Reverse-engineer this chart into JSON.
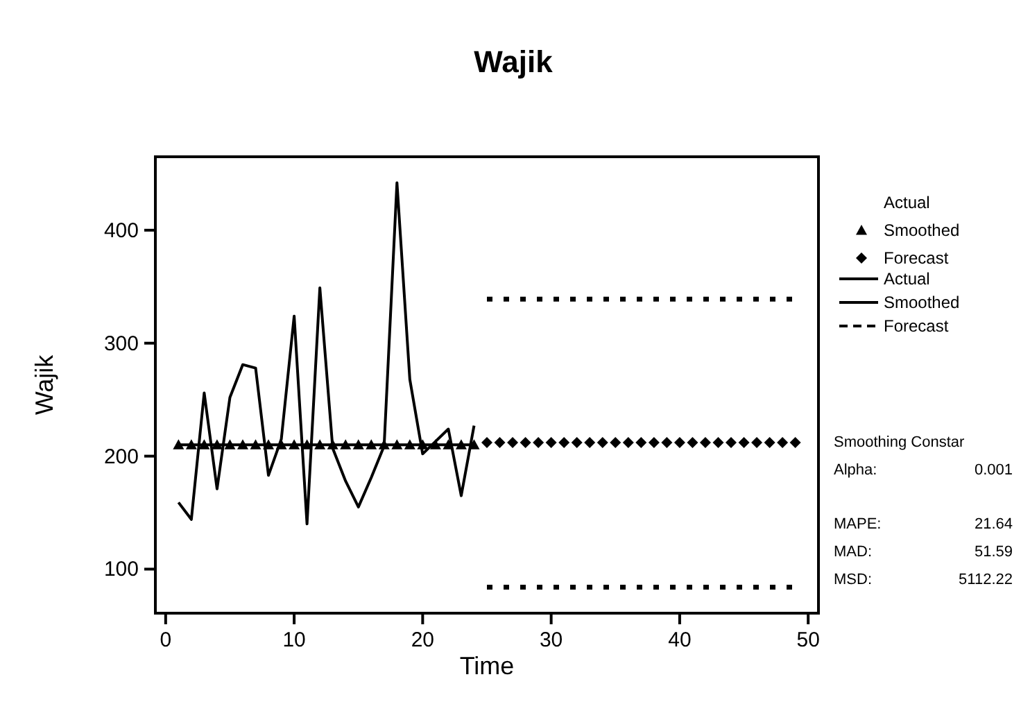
{
  "chart_data": {
    "type": "line",
    "title": "Wajik",
    "xlabel": "Time",
    "ylabel": "Wajik",
    "xlim": [
      -0.8,
      50.8
    ],
    "ylim": [
      61,
      465
    ],
    "xticks": [
      0,
      10,
      20,
      30,
      40,
      50
    ],
    "yticks": [
      100,
      200,
      300,
      400
    ],
    "grid": false,
    "legend": "right",
    "series": [
      {
        "name": "Actual",
        "color": "#000000",
        "marker": "none",
        "line_style": "solid",
        "x": [
          1,
          2,
          3,
          4,
          5,
          6,
          7,
          8,
          9,
          10,
          11,
          12,
          13,
          14,
          15,
          16,
          17,
          18,
          19,
          20,
          21,
          22,
          23,
          24
        ],
        "values": [
          159,
          144,
          256,
          171,
          252,
          281,
          278,
          183,
          215,
          324,
          140,
          349,
          207,
          178,
          155,
          181,
          209,
          442,
          268,
          202,
          213,
          224,
          165,
          227
        ]
      },
      {
        "name": "Smoothed",
        "color": "#000000",
        "marker": "triangle",
        "line_style": "solid",
        "x": [
          1,
          2,
          3,
          4,
          5,
          6,
          7,
          8,
          9,
          10,
          11,
          12,
          13,
          14,
          15,
          16,
          17,
          18,
          19,
          20,
          21,
          22,
          23,
          24
        ],
        "values": [
          210,
          210,
          210,
          210,
          210,
          210,
          210,
          210,
          210,
          210,
          210,
          210,
          210,
          210,
          210,
          210,
          210,
          210,
          210,
          210,
          210,
          210,
          210,
          210
        ]
      },
      {
        "name": "Forecast",
        "type": "scatter",
        "color": "#000000",
        "marker": "diamond",
        "x": [
          25,
          26,
          27,
          28,
          29,
          30,
          31,
          32,
          33,
          34,
          35,
          36,
          37,
          38,
          39,
          40,
          41,
          42,
          43,
          44,
          45,
          46,
          47,
          48,
          49
        ],
        "values": [
          212,
          212,
          212,
          212,
          212,
          212,
          212,
          212,
          212,
          212,
          212,
          212,
          212,
          212,
          212,
          212,
          212,
          212,
          212,
          212,
          212,
          212,
          212,
          212,
          212
        ]
      },
      {
        "name": "Forecast",
        "color": "#000000",
        "marker": "none",
        "line_style": "dotted",
        "x": [
          25,
          49
        ],
        "values": [
          339,
          339
        ]
      },
      {
        "color": "#000000",
        "marker": "none",
        "line_style": "dotted",
        "x": [
          25,
          49
        ],
        "values": [
          84,
          84
        ]
      }
    ],
    "annotations": [
      "Smoothing Constar",
      "Alpha: 0.001",
      "MAPE: 21.64",
      "MAD: 51.59",
      "MSD: 5112.22"
    ]
  }
}
